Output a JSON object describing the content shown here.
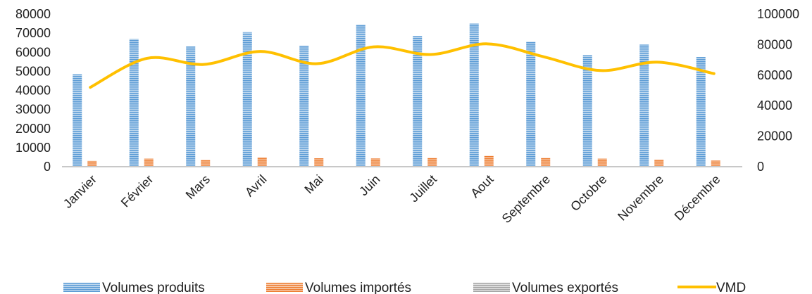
{
  "chart_data": {
    "type": "bar",
    "categories": [
      "Janvier",
      "Février",
      "Mars",
      "Avril",
      "Mai",
      "Juin",
      "Juillet",
      "Aout",
      "Septembre",
      "Octobre",
      "Novembre",
      "Décembre"
    ],
    "series": [
      {
        "name": "Volumes produits",
        "type": "bar",
        "axis": "left",
        "color": "#5b9bd5",
        "values": [
          48500,
          67000,
          63000,
          70500,
          63500,
          74500,
          68500,
          75000,
          65500,
          58500,
          64000,
          57500
        ]
      },
      {
        "name": "Volumes importés",
        "type": "bar",
        "axis": "left",
        "color": "#ed7d31",
        "values": [
          3000,
          4200,
          3600,
          5000,
          4400,
          4300,
          4600,
          5700,
          4600,
          4200,
          3800,
          3200
        ]
      },
      {
        "name": "Volumes exportés",
        "type": "bar",
        "axis": "left",
        "color": "#a5a5a5",
        "values": [
          0,
          0,
          0,
          0,
          0,
          0,
          0,
          0,
          0,
          0,
          0,
          0
        ]
      },
      {
        "name": "VMD",
        "type": "line",
        "axis": "right",
        "color": "#ffc000",
        "values": [
          52000,
          71000,
          67000,
          75500,
          67500,
          78500,
          73500,
          80500,
          72000,
          63000,
          68500,
          61000
        ]
      }
    ],
    "y_left": {
      "min": 0,
      "max": 80000,
      "ticks": [
        "0",
        "10000",
        "20000",
        "30000",
        "40000",
        "50000",
        "60000",
        "70000",
        "80000"
      ]
    },
    "y_right": {
      "min": 0,
      "max": 100000,
      "ticks": [
        "0",
        "20000",
        "40000",
        "60000",
        "80000",
        "100000"
      ]
    },
    "grid": false,
    "legend": "bottom"
  }
}
